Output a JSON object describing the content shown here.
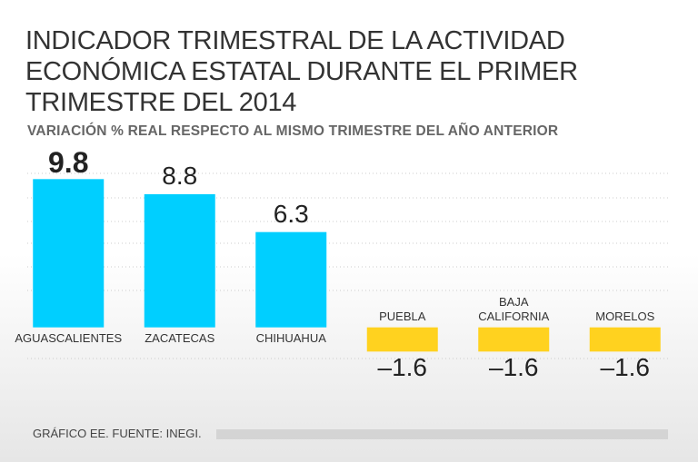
{
  "chart_data": {
    "type": "bar",
    "title": "INDICADOR TRIMESTRAL DE LA ACTIVIDAD ECONÓMICA ESTATAL DURANTE EL PRIMER TRIMESTRE DEL 2014",
    "subtitle": "VARIACIÓN % REAL RESPECTO AL MISMO TRIMESTRE DEL AÑO ANTERIOR",
    "categories": [
      "AGUASCALIENTES",
      "ZACATECAS",
      "CHIHUAHUA",
      "PUEBLA",
      "BAJA CALIFORNIA",
      "MORELOS"
    ],
    "values": [
      9.8,
      8.8,
      6.3,
      -1.6,
      -1.6,
      -1.6
    ],
    "value_labels": [
      "9.8",
      "8.8",
      "6.3",
      "–1.6",
      "–1.6",
      "–1.6"
    ],
    "colors": [
      "#00cfff",
      "#00cfff",
      "#00cfff",
      "#ffd21f",
      "#ffd21f",
      "#ffd21f"
    ],
    "ylim": [
      -2,
      10
    ],
    "source": "GRÁFICO EE. FUENTE: INEGI."
  }
}
